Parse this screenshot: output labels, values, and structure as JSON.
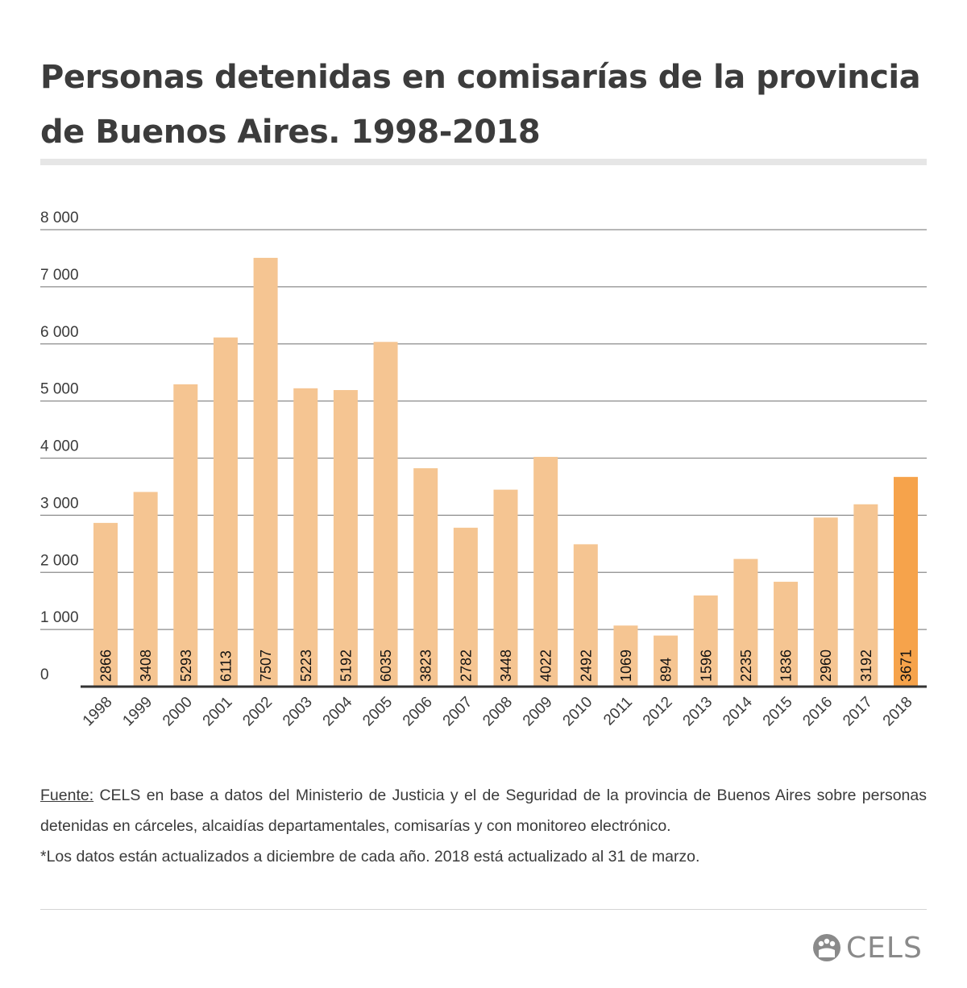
{
  "header": {
    "title_line1": "Personas detenidas en comisarías de la provincia",
    "title_line2": "de Buenos Aires. 1998-2018"
  },
  "chart_data": {
    "type": "bar",
    "title": "Personas detenidas en comisarías de la provincia de Buenos Aires. 1998-2018",
    "categories": [
      "1998",
      "1999",
      "2000",
      "2001",
      "2002",
      "2003",
      "2004",
      "2005",
      "2006",
      "2007",
      "2008",
      "2009",
      "2010",
      "2011",
      "2012",
      "2013",
      "2014",
      "2015",
      "2016",
      "2017",
      "2018"
    ],
    "values": [
      2866,
      3408,
      5293,
      6113,
      7507,
      5223,
      5192,
      6035,
      3823,
      2782,
      3448,
      4022,
      2492,
      1069,
      894,
      1596,
      2235,
      1836,
      2960,
      3192,
      3671
    ],
    "highlight": "2018",
    "ylim": [
      0,
      8000
    ],
    "yticks": [
      0,
      1000,
      2000,
      3000,
      4000,
      5000,
      6000,
      7000,
      8000
    ],
    "ytick_labels": [
      "0",
      "1 000",
      "2 000",
      "3 000",
      "4 000",
      "5 000",
      "6 000",
      "7 000",
      "8 000"
    ],
    "grid": true,
    "colors": {
      "bar": "#f5c592",
      "highlight": "#f6a34b",
      "grid": "#8c8c8c",
      "axis": "#333333",
      "text": "#3a3a3a"
    }
  },
  "notes": {
    "source_label": "Fuente:",
    "source_text": " CELS en base a datos del Ministerio de Justicia y el de Seguridad de la provincia de Buenos  Aires sobre personas detenidas en cárceles, alcaidías departamentales, comisarías y con monitoreo electrónico.",
    "footnote": "*Los datos están actualizados a diciembre de cada año. 2018 está actualizado al 31 de marzo."
  },
  "logo": {
    "text": "CELS",
    "icon": "cels-logo-icon"
  }
}
